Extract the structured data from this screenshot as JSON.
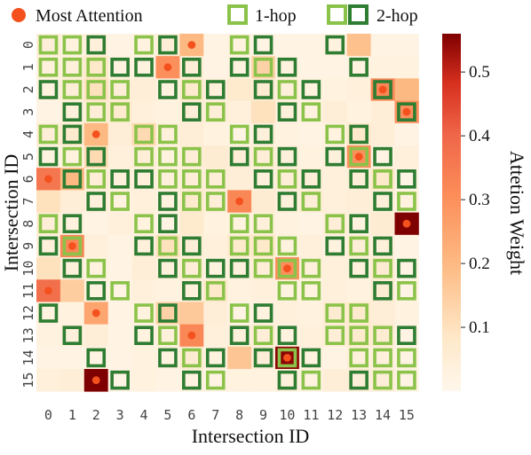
{
  "chart_data": {
    "type": "heatmap",
    "xlabel": "Intersection ID",
    "ylabel": "Intersection ID",
    "colorbar_label": "Attetion Weight",
    "x_categories": [
      "0",
      "1",
      "2",
      "3",
      "4",
      "5",
      "6",
      "7",
      "8",
      "9",
      "10",
      "11",
      "12",
      "13",
      "14",
      "15"
    ],
    "y_categories": [
      "0",
      "1",
      "2",
      "3",
      "4",
      "5",
      "6",
      "7",
      "8",
      "9",
      "10",
      "11",
      "12",
      "13",
      "14",
      "15"
    ],
    "colorbar": {
      "min": 0.0,
      "max": 0.56,
      "ticks": [
        0.1,
        0.2,
        0.3,
        0.4,
        0.5
      ],
      "tick_labels": [
        "0.1",
        "0.2",
        "0.3",
        "0.4",
        "0.5"
      ],
      "colormap": "OrRd"
    },
    "legend": {
      "placement": "top",
      "items": [
        {
          "key": "most",
          "label": "Most Attention",
          "color": "#f4511e"
        },
        {
          "key": "hop1",
          "label": "1-hop",
          "color": "#8bc34a"
        },
        {
          "key": "hop2",
          "label": "2-hop",
          "color": "#2e7d32"
        }
      ]
    },
    "values": [
      [
        0.05,
        0.03,
        0.04,
        0.02,
        0.03,
        0.05,
        0.2,
        0.02,
        0.03,
        0.02,
        0.02,
        0.02,
        0.03,
        0.18,
        0.02,
        0.02
      ],
      [
        0.04,
        0.04,
        0.08,
        0.03,
        0.03,
        0.3,
        0.05,
        0.02,
        0.03,
        0.14,
        0.03,
        0.02,
        0.02,
        0.03,
        0.03,
        0.03
      ],
      [
        0.03,
        0.05,
        0.1,
        0.05,
        0.05,
        0.03,
        0.07,
        0.04,
        0.07,
        0.06,
        0.04,
        0.03,
        0.03,
        0.04,
        0.32,
        0.2
      ],
      [
        0.02,
        0.04,
        0.05,
        0.07,
        0.04,
        0.03,
        0.05,
        0.05,
        0.04,
        0.1,
        0.04,
        0.03,
        0.05,
        0.03,
        0.05,
        0.3
      ],
      [
        0.05,
        0.07,
        0.2,
        0.05,
        0.12,
        0.04,
        0.05,
        0.03,
        0.02,
        0.04,
        0.03,
        0.02,
        0.03,
        0.08,
        0.05,
        0.02
      ],
      [
        0.03,
        0.03,
        0.12,
        0.04,
        0.05,
        0.03,
        0.05,
        0.06,
        0.05,
        0.05,
        0.04,
        0.03,
        0.04,
        0.3,
        0.02,
        0.04
      ],
      [
        0.36,
        0.2,
        0.05,
        0.04,
        0.04,
        0.04,
        0.05,
        0.05,
        0.05,
        0.04,
        0.05,
        0.05,
        0.04,
        0.05,
        0.08,
        0.02
      ],
      [
        0.1,
        0.05,
        0.04,
        0.03,
        0.04,
        0.03,
        0.07,
        0.05,
        0.32,
        0.06,
        0.04,
        0.05,
        0.04,
        0.05,
        0.04,
        0.03
      ],
      [
        0.05,
        0.03,
        0.02,
        0.04,
        0.03,
        0.02,
        0.07,
        0.03,
        0.03,
        0.04,
        0.03,
        0.02,
        0.05,
        0.03,
        0.06,
        0.56
      ],
      [
        0.04,
        0.32,
        0.04,
        0.02,
        0.04,
        0.1,
        0.05,
        0.04,
        0.07,
        0.08,
        0.03,
        0.04,
        0.03,
        0.05,
        0.04,
        0.02
      ],
      [
        0.1,
        0.04,
        0.03,
        0.02,
        0.05,
        0.04,
        0.05,
        0.03,
        0.04,
        0.05,
        0.3,
        0.04,
        0.04,
        0.04,
        0.06,
        0.02
      ],
      [
        0.38,
        0.15,
        0.03,
        0.02,
        0.04,
        0.03,
        0.04,
        0.08,
        0.03,
        0.04,
        0.03,
        0.03,
        0.04,
        0.03,
        0.06,
        0.02
      ],
      [
        0.03,
        0.03,
        0.25,
        0.02,
        0.03,
        0.14,
        0.16,
        0.05,
        0.02,
        0.03,
        0.04,
        0.03,
        0.06,
        0.07,
        0.05,
        0.03
      ],
      [
        0.03,
        0.04,
        0.05,
        0.02,
        0.03,
        0.04,
        0.32,
        0.04,
        0.04,
        0.05,
        0.03,
        0.04,
        0.05,
        0.07,
        0.06,
        0.02
      ],
      [
        0.02,
        0.02,
        0.02,
        0.02,
        0.03,
        0.03,
        0.06,
        0.03,
        0.17,
        0.05,
        0.55,
        0.03,
        0.02,
        0.04,
        0.04,
        0.02
      ],
      [
        0.04,
        0.05,
        0.56,
        0.02,
        0.03,
        0.02,
        0.03,
        0.02,
        0.03,
        0.03,
        0.04,
        0.03,
        0.05,
        0.05,
        0.05,
        0.02
      ]
    ],
    "most_attention": [
      [
        0,
        6
      ],
      [
        1,
        5
      ],
      [
        2,
        14
      ],
      [
        3,
        15
      ],
      [
        4,
        2
      ],
      [
        5,
        13
      ],
      [
        6,
        0
      ],
      [
        7,
        8
      ],
      [
        8,
        15
      ],
      [
        9,
        1
      ],
      [
        10,
        10
      ],
      [
        11,
        0
      ],
      [
        12,
        2
      ],
      [
        13,
        6
      ],
      [
        14,
        10
      ],
      [
        15,
        2
      ]
    ],
    "one_hop": [
      [
        0,
        0
      ],
      [
        0,
        1
      ],
      [
        0,
        4
      ],
      [
        0,
        8
      ],
      [
        1,
        0
      ],
      [
        1,
        1
      ],
      [
        1,
        2
      ],
      [
        1,
        9
      ],
      [
        2,
        1
      ],
      [
        2,
        2
      ],
      [
        2,
        3
      ],
      [
        2,
        6
      ],
      [
        2,
        10
      ],
      [
        3,
        2
      ],
      [
        3,
        3
      ],
      [
        3,
        7
      ],
      [
        3,
        11
      ],
      [
        4,
        0
      ],
      [
        4,
        4
      ],
      [
        4,
        5
      ],
      [
        4,
        8
      ],
      [
        4,
        12
      ],
      [
        5,
        1
      ],
      [
        5,
        4
      ],
      [
        5,
        5
      ],
      [
        5,
        6
      ],
      [
        5,
        9
      ],
      [
        5,
        13
      ],
      [
        6,
        2
      ],
      [
        6,
        5
      ],
      [
        6,
        6
      ],
      [
        6,
        7
      ],
      [
        6,
        10
      ],
      [
        6,
        14
      ],
      [
        7,
        3
      ],
      [
        7,
        6
      ],
      [
        7,
        7
      ],
      [
        7,
        11
      ],
      [
        7,
        15
      ],
      [
        8,
        0
      ],
      [
        8,
        4
      ],
      [
        8,
        8
      ],
      [
        8,
        9
      ],
      [
        8,
        12
      ],
      [
        9,
        1
      ],
      [
        9,
        5
      ],
      [
        9,
        8
      ],
      [
        9,
        9
      ],
      [
        9,
        10
      ],
      [
        9,
        13
      ],
      [
        10,
        2
      ],
      [
        10,
        6
      ],
      [
        10,
        9
      ],
      [
        10,
        10
      ],
      [
        10,
        11
      ],
      [
        10,
        14
      ],
      [
        11,
        3
      ],
      [
        11,
        7
      ],
      [
        11,
        10
      ],
      [
        11,
        11
      ],
      [
        11,
        15
      ],
      [
        12,
        4
      ],
      [
        12,
        8
      ],
      [
        12,
        12
      ],
      [
        12,
        13
      ],
      [
        13,
        5
      ],
      [
        13,
        9
      ],
      [
        13,
        12
      ],
      [
        13,
        13
      ],
      [
        13,
        14
      ],
      [
        14,
        6
      ],
      [
        14,
        10
      ],
      [
        14,
        13
      ],
      [
        14,
        14
      ],
      [
        14,
        15
      ],
      [
        15,
        7
      ],
      [
        15,
        11
      ],
      [
        15,
        14
      ],
      [
        15,
        15
      ]
    ],
    "two_hop": [
      [
        0,
        2
      ],
      [
        0,
        5
      ],
      [
        0,
        9
      ],
      [
        0,
        12
      ],
      [
        1,
        3
      ],
      [
        1,
        4
      ],
      [
        1,
        6
      ],
      [
        1,
        8
      ],
      [
        1,
        10
      ],
      [
        1,
        13
      ],
      [
        2,
        0
      ],
      [
        2,
        5
      ],
      [
        2,
        7
      ],
      [
        2,
        9
      ],
      [
        2,
        11
      ],
      [
        2,
        14
      ],
      [
        3,
        1
      ],
      [
        3,
        6
      ],
      [
        3,
        10
      ],
      [
        3,
        15
      ],
      [
        4,
        1
      ],
      [
        4,
        9
      ],
      [
        4,
        13
      ],
      [
        5,
        0
      ],
      [
        5,
        2
      ],
      [
        5,
        8
      ],
      [
        5,
        10
      ],
      [
        5,
        12
      ],
      [
        5,
        14
      ],
      [
        6,
        1
      ],
      [
        6,
        3
      ],
      [
        6,
        4
      ],
      [
        6,
        9
      ],
      [
        6,
        11
      ],
      [
        6,
        13
      ],
      [
        6,
        15
      ],
      [
        7,
        2
      ],
      [
        7,
        5
      ],
      [
        7,
        10
      ],
      [
        7,
        14
      ],
      [
        8,
        1
      ],
      [
        8,
        5
      ],
      [
        8,
        13
      ],
      [
        9,
        0
      ],
      [
        9,
        4
      ],
      [
        9,
        6
      ],
      [
        9,
        12
      ],
      [
        9,
        14
      ],
      [
        10,
        1
      ],
      [
        10,
        5
      ],
      [
        10,
        7
      ],
      [
        10,
        8
      ],
      [
        10,
        13
      ],
      [
        10,
        15
      ],
      [
        11,
        2
      ],
      [
        11,
        6
      ],
      [
        11,
        14
      ],
      [
        12,
        0
      ],
      [
        12,
        5
      ],
      [
        12,
        9
      ],
      [
        13,
        1
      ],
      [
        13,
        4
      ],
      [
        13,
        8
      ],
      [
        13,
        10
      ],
      [
        13,
        15
      ],
      [
        14,
        2
      ],
      [
        14,
        5
      ],
      [
        14,
        7
      ],
      [
        14,
        9
      ],
      [
        14,
        11
      ],
      [
        15,
        3
      ],
      [
        15,
        6
      ],
      [
        15,
        10
      ],
      [
        15,
        13
      ]
    ]
  }
}
